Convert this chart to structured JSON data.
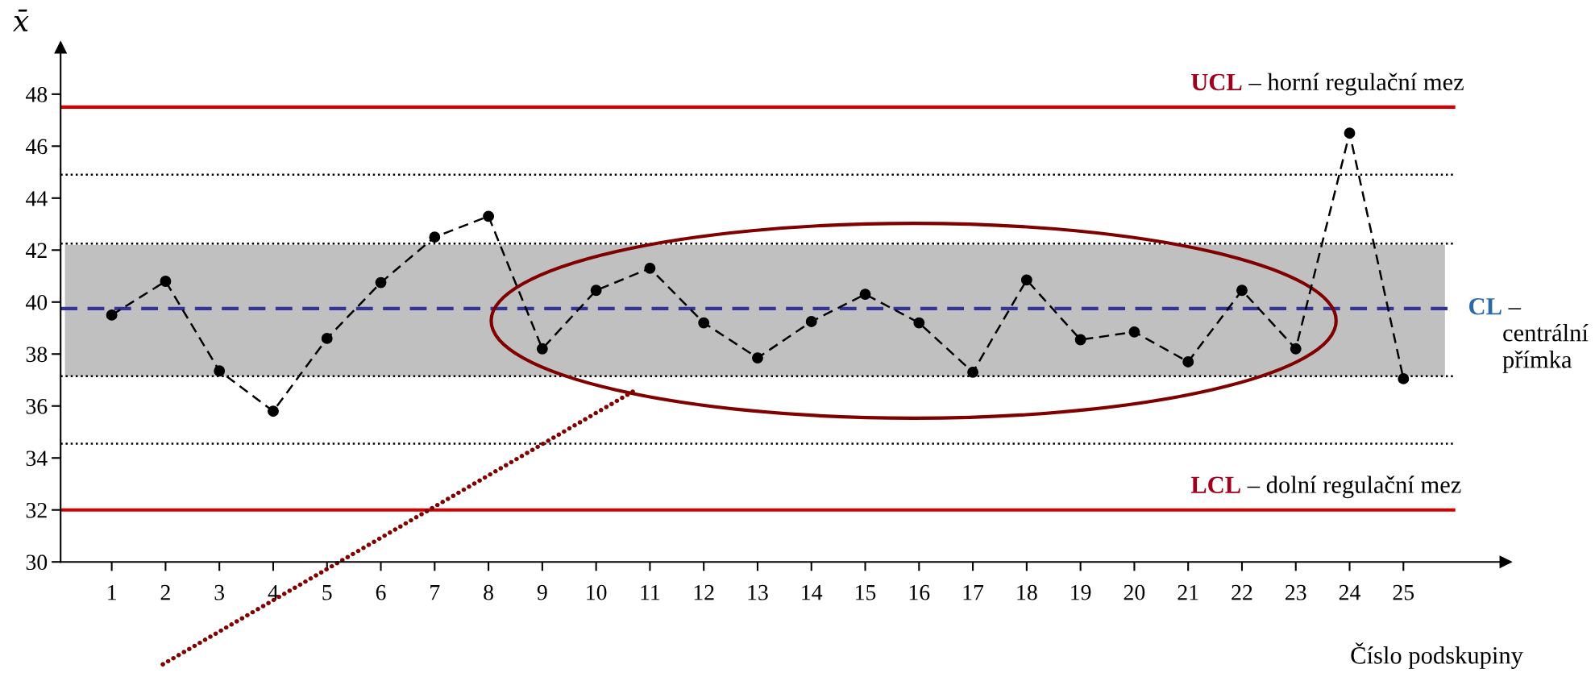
{
  "chart_data": {
    "type": "line",
    "xlabel": "Číslo podskupiny",
    "ylabel": "x̄",
    "x": [
      1,
      2,
      3,
      4,
      5,
      6,
      7,
      8,
      9,
      10,
      11,
      12,
      13,
      14,
      15,
      16,
      17,
      18,
      19,
      20,
      21,
      22,
      23,
      24,
      25
    ],
    "series": [
      {
        "color": "#000000",
        "values": [
          39.5,
          40.8,
          37.35,
          35.8,
          38.6,
          40.75,
          42.5,
          43.3,
          38.2,
          40.45,
          41.3,
          39.2,
          37.85,
          39.25,
          40.3,
          39.2,
          37.3,
          40.85,
          38.55,
          38.85,
          37.7,
          40.45,
          38.2,
          46.5,
          37.05
        ]
      }
    ],
    "marker": "circle",
    "line_style": "dashed",
    "xlim": [
      0.05,
      26.9
    ],
    "ylim": [
      30,
      49.8
    ],
    "xticks": [
      1,
      2,
      3,
      4,
      5,
      6,
      7,
      8,
      9,
      10,
      11,
      12,
      13,
      14,
      15,
      16,
      17,
      18,
      19,
      20,
      21,
      22,
      23,
      24,
      25
    ],
    "yticks": [
      30,
      32,
      34,
      36,
      38,
      40,
      42,
      44,
      46,
      48
    ],
    "grid": false,
    "ref_lines": [
      {
        "axis": "y",
        "value": 47.5,
        "label": "UCL – horní regulační mez",
        "color": "#d40000",
        "line_style": "solid"
      },
      {
        "axis": "y",
        "value": 32,
        "label": "LCL – dolní regulační mez",
        "color": "#d40000",
        "line_style": "solid"
      },
      {
        "axis": "y",
        "value": 39.75,
        "label": "CL –\ncentrální\npřímka",
        "color": "#333399",
        "line_style": "dashed"
      },
      {
        "axis": "y",
        "value": 44.9,
        "color": "#000000",
        "line_style": "dotted"
      },
      {
        "axis": "y",
        "value": 42.25,
        "color": "#000000",
        "line_style": "dotted"
      },
      {
        "axis": "y",
        "value": 37.15,
        "color": "#000000",
        "line_style": "dotted"
      },
      {
        "axis": "y",
        "value": 34.55,
        "color": "#000000",
        "line_style": "dotted"
      }
    ],
    "bands": [
      {
        "axis": "y",
        "from": 37.15,
        "to": 42.2,
        "color": "#c0c0c0"
      }
    ]
  }
}
